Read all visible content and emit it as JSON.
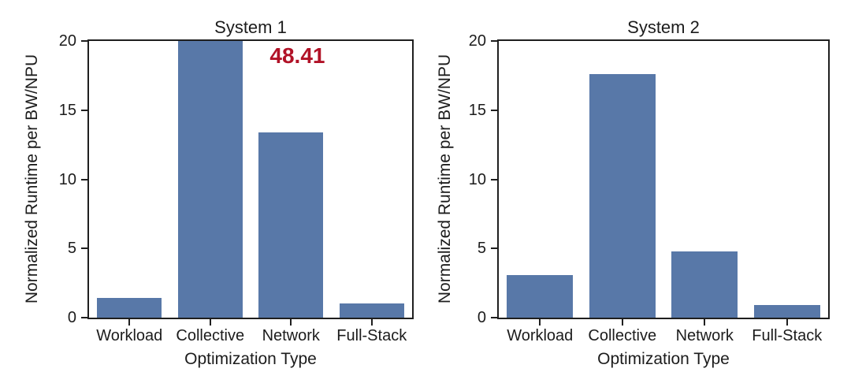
{
  "figure": {
    "background": "#ffffff",
    "bar_color": "#5878a8",
    "axis_color": "#1f1f1f",
    "text_color": "#1c1c1c",
    "annotation_color": "#b11227"
  },
  "chart_data": [
    {
      "type": "bar",
      "title": "System 1",
      "xlabel": "Optimization Type",
      "ylabel": "Normalized Runtime per BW/NPU",
      "categories": [
        "Workload",
        "Collective",
        "Network",
        "Full-Stack"
      ],
      "values": [
        1.4,
        48.41,
        13.4,
        1.0
      ],
      "ylim": [
        0,
        20
      ],
      "yticks": [
        0,
        5,
        10,
        15,
        20
      ],
      "grid": false,
      "bar_clipped_at_ylim": [
        "Collective"
      ],
      "annotations": [
        {
          "text": "48.41",
          "color": "#b11227",
          "bold": true
        }
      ]
    },
    {
      "type": "bar",
      "title": "System 2",
      "xlabel": "Optimization Type",
      "ylabel": "Normalized Runtime per BW/NPU",
      "categories": [
        "Workload",
        "Collective",
        "Network",
        "Full-Stack"
      ],
      "values": [
        3.1,
        17.6,
        4.8,
        0.9
      ],
      "ylim": [
        0,
        20
      ],
      "yticks": [
        0,
        5,
        10,
        15,
        20
      ],
      "grid": false,
      "bar_clipped_at_ylim": [],
      "annotations": []
    }
  ]
}
